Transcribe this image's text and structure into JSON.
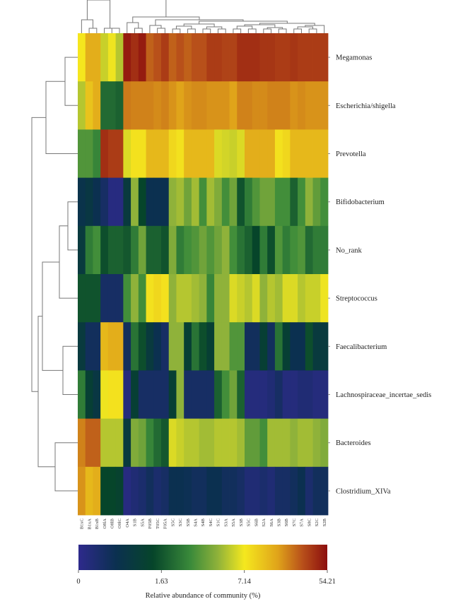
{
  "chart_data": {
    "type": "heatmap",
    "title": "",
    "rows": [
      "Megamonas",
      "Escherichia/shigella",
      "Prevotella",
      "Bifidobacterium",
      "No_rank",
      "Streptococcus",
      "Faecalibacterium",
      "Lachnospiraceae_incertae_sedis",
      "Bacteroides",
      "Clostridium_XIVa"
    ],
    "columns": [
      "B1xC",
      "B1xA",
      "B1xB",
      "O8lA",
      "O8lB",
      "O0lC",
      "O4A",
      "S1B",
      "S5A",
      "F05B",
      "T05C",
      "F05A",
      "S5C",
      "S3C",
      "S5B",
      "S4A",
      "S4B",
      "S4C",
      "S1C",
      "S3A",
      "S5A",
      "S3B",
      "S5C",
      "S6B",
      "S2A",
      "S6A",
      "S3B",
      "S6B",
      "S7C",
      "S7A",
      "S8C",
      "S2C",
      "S2B"
    ],
    "value_scale": "normalized color position (0 = 0%, 0.333 = 1.63%, 0.667 = 7.14%, 1 = 54.21%)",
    "values": [
      [
        0.67,
        0.78,
        0.78,
        0.62,
        0.66,
        0.6,
        0.98,
        0.95,
        0.98,
        0.88,
        0.9,
        0.93,
        0.88,
        0.9,
        0.88,
        0.9,
        0.9,
        0.93,
        0.93,
        0.92,
        0.92,
        0.95,
        0.95,
        0.95,
        0.94,
        0.94,
        0.93,
        0.93,
        0.94,
        0.93,
        0.93,
        0.93,
        0.93
      ],
      [
        0.6,
        0.74,
        0.78,
        0.38,
        0.38,
        0.36,
        0.85,
        0.84,
        0.84,
        0.84,
        0.83,
        0.84,
        0.82,
        0.8,
        0.82,
        0.83,
        0.83,
        0.82,
        0.82,
        0.82,
        0.8,
        0.84,
        0.84,
        0.83,
        0.83,
        0.84,
        0.84,
        0.84,
        0.82,
        0.83,
        0.82,
        0.82,
        0.82
      ],
      [
        0.48,
        0.48,
        0.44,
        0.95,
        0.93,
        0.93,
        0.64,
        0.68,
        0.68,
        0.76,
        0.76,
        0.76,
        0.7,
        0.68,
        0.76,
        0.76,
        0.76,
        0.76,
        0.64,
        0.63,
        0.62,
        0.64,
        0.78,
        0.78,
        0.78,
        0.78,
        0.68,
        0.7,
        0.76,
        0.76,
        0.76,
        0.76,
        0.76
      ],
      [
        0.17,
        0.2,
        0.15,
        0.1,
        0.03,
        0.03,
        0.22,
        0.56,
        0.3,
        0.15,
        0.15,
        0.15,
        0.56,
        0.58,
        0.52,
        0.58,
        0.46,
        0.58,
        0.54,
        0.46,
        0.52,
        0.33,
        0.42,
        0.48,
        0.52,
        0.52,
        0.46,
        0.46,
        0.36,
        0.46,
        0.56,
        0.5,
        0.46
      ],
      [
        0.22,
        0.42,
        0.46,
        0.32,
        0.36,
        0.36,
        0.34,
        0.42,
        0.52,
        0.36,
        0.36,
        0.33,
        0.54,
        0.42,
        0.46,
        0.48,
        0.52,
        0.48,
        0.52,
        0.56,
        0.46,
        0.4,
        0.36,
        0.3,
        0.42,
        0.32,
        0.48,
        0.42,
        0.46,
        0.48,
        0.38,
        0.42,
        0.42
      ],
      [
        0.33,
        0.33,
        0.33,
        0.1,
        0.1,
        0.1,
        0.46,
        0.56,
        0.46,
        0.68,
        0.7,
        0.68,
        0.56,
        0.6,
        0.6,
        0.58,
        0.56,
        0.44,
        0.56,
        0.56,
        0.64,
        0.62,
        0.6,
        0.64,
        0.56,
        0.6,
        0.58,
        0.64,
        0.64,
        0.6,
        0.62,
        0.62,
        0.66
      ],
      [
        0.22,
        0.12,
        0.12,
        0.76,
        0.78,
        0.78,
        0.12,
        0.4,
        0.32,
        0.22,
        0.15,
        0.1,
        0.56,
        0.56,
        0.26,
        0.4,
        0.32,
        0.26,
        0.56,
        0.56,
        0.48,
        0.48,
        0.12,
        0.12,
        0.26,
        0.12,
        0.4,
        0.26,
        0.15,
        0.15,
        0.32,
        0.22,
        0.22
      ],
      [
        0.42,
        0.26,
        0.2,
        0.66,
        0.68,
        0.68,
        0.04,
        0.26,
        0.1,
        0.1,
        0.1,
        0.1,
        0.26,
        0.56,
        0.1,
        0.1,
        0.1,
        0.1,
        0.36,
        0.46,
        0.52,
        0.36,
        0.04,
        0.04,
        0.04,
        0.06,
        0.1,
        0.04,
        0.04,
        0.06,
        0.06,
        0.04,
        0.04
      ],
      [
        0.84,
        0.88,
        0.88,
        0.6,
        0.6,
        0.6,
        0.22,
        0.54,
        0.52,
        0.44,
        0.38,
        0.34,
        0.64,
        0.62,
        0.6,
        0.6,
        0.58,
        0.58,
        0.6,
        0.6,
        0.6,
        0.58,
        0.5,
        0.5,
        0.46,
        0.58,
        0.58,
        0.58,
        0.56,
        0.58,
        0.58,
        0.56,
        0.54
      ],
      [
        0.82,
        0.76,
        0.78,
        0.3,
        0.3,
        0.28,
        0.03,
        0.06,
        0.08,
        0.12,
        0.08,
        0.1,
        0.15,
        0.15,
        0.14,
        0.12,
        0.12,
        0.15,
        0.15,
        0.12,
        0.12,
        0.1,
        0.06,
        0.06,
        0.08,
        0.06,
        0.1,
        0.1,
        0.12,
        0.15,
        0.08,
        0.12,
        0.12
      ]
    ],
    "colorbar": {
      "tick_labels": [
        "0",
        "1.63",
        "7.14",
        "54.21"
      ],
      "tick_values": [
        0,
        1.63,
        7.14,
        54.21
      ],
      "label": "Relative abundance of community (%)",
      "colors": [
        "#2e2a8c",
        "#0b3050",
        "#06452a",
        "#3a8a3a",
        "#8fb23a",
        "#f5e81e",
        "#e0a41a",
        "#b8501a",
        "#8c0e0e"
      ],
      "stops": [
        0,
        0.15,
        0.3,
        0.45,
        0.56,
        0.667,
        0.8,
        0.9,
        1.0
      ]
    },
    "row_dendrogram": true,
    "column_dendrogram": true,
    "legend": "bottom"
  }
}
